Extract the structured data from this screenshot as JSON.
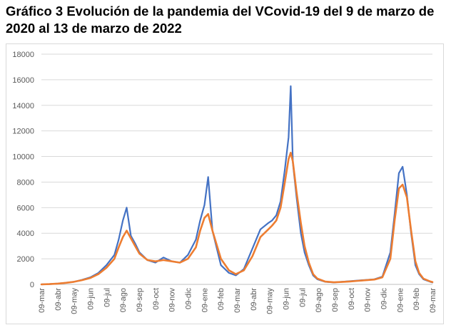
{
  "title": "Gráfico 3 Evolución de la pandemia del VCovid-19 del 9 de marzo de 2020 al 13 de marzo de 2022",
  "chart_data": {
    "type": "line",
    "title": "Gráfico 3 Evolución de la pandemia del VCovid-19 del 9 de marzo de 2020 al 13 de marzo de 2022",
    "xlabel": "",
    "ylabel": "",
    "ylim": [
      0,
      18000
    ],
    "yticks": [
      0,
      2000,
      4000,
      6000,
      8000,
      10000,
      12000,
      14000,
      16000,
      18000
    ],
    "x_tick_labels": [
      "09-mar",
      "09-abr",
      "09-may",
      "09-jun",
      "09-jul",
      "09-ago",
      "09-sep",
      "09-oct",
      "09-nov",
      "09-dic",
      "09-ene",
      "09-feb",
      "09-mar",
      "09-abr",
      "09-may",
      "09-jun",
      "09-jul",
      "09-ago",
      "09-sep",
      "09-oct",
      "09-nov",
      "09-dic",
      "09-ene",
      "09-feb",
      "09-mar"
    ],
    "grid": true,
    "legend": "none",
    "colors": {
      "daily": "#4472c4",
      "average": "#ed7d31"
    },
    "series": [
      {
        "style": "daily",
        "x": [
          "2020-03-09",
          "2020-03-24",
          "2020-04-09",
          "2020-04-24",
          "2020-05-09",
          "2020-05-24",
          "2020-06-09",
          "2020-06-24",
          "2020-07-09",
          "2020-07-24",
          "2020-08-01",
          "2020-08-09",
          "2020-08-16",
          "2020-08-24",
          "2020-09-01",
          "2020-09-09",
          "2020-09-24",
          "2020-10-09",
          "2020-10-24",
          "2020-11-09",
          "2020-11-24",
          "2020-12-09",
          "2020-12-24",
          "2021-01-01",
          "2021-01-09",
          "2021-01-16",
          "2021-01-24",
          "2021-02-09",
          "2021-02-24",
          "2021-03-09",
          "2021-03-24",
          "2021-04-09",
          "2021-04-24",
          "2021-05-09",
          "2021-05-16",
          "2021-05-24",
          "2021-06-01",
          "2021-06-09",
          "2021-06-16",
          "2021-06-20",
          "2021-06-24",
          "2021-07-01",
          "2021-07-09",
          "2021-07-16",
          "2021-07-24",
          "2021-08-01",
          "2021-08-09",
          "2021-08-24",
          "2021-09-09",
          "2021-09-24",
          "2021-10-09",
          "2021-10-24",
          "2021-11-09",
          "2021-11-24",
          "2021-12-09",
          "2021-12-24",
          "2022-01-01",
          "2022-01-09",
          "2022-01-16",
          "2022-01-24",
          "2022-02-01",
          "2022-02-09",
          "2022-02-16",
          "2022-02-24",
          "2022-03-09",
          "2022-03-13"
        ],
        "values": [
          0,
          20,
          60,
          120,
          200,
          350,
          550,
          900,
          1500,
          2300,
          3500,
          5000,
          6000,
          3800,
          3200,
          2500,
          1900,
          1700,
          2100,
          1800,
          1700,
          2300,
          3500,
          5000,
          6200,
          8400,
          4200,
          1500,
          900,
          700,
          1200,
          2800,
          4300,
          4800,
          5000,
          5400,
          6500,
          9000,
          11500,
          15500,
          9500,
          6800,
          4000,
          2500,
          1500,
          700,
          400,
          200,
          150,
          200,
          250,
          300,
          350,
          400,
          600,
          2500,
          5500,
          8700,
          9200,
          7000,
          4000,
          1500,
          800,
          400,
          200,
          150
        ]
      },
      {
        "style": "average",
        "x": [
          "2020-03-09",
          "2020-03-24",
          "2020-04-09",
          "2020-04-24",
          "2020-05-09",
          "2020-05-24",
          "2020-06-09",
          "2020-06-24",
          "2020-07-09",
          "2020-07-24",
          "2020-08-01",
          "2020-08-09",
          "2020-08-16",
          "2020-08-24",
          "2020-09-01",
          "2020-09-09",
          "2020-09-24",
          "2020-10-09",
          "2020-10-24",
          "2020-11-09",
          "2020-11-24",
          "2020-12-09",
          "2020-12-24",
          "2021-01-01",
          "2021-01-09",
          "2021-01-16",
          "2021-01-24",
          "2021-02-09",
          "2021-02-24",
          "2021-03-09",
          "2021-03-24",
          "2021-04-09",
          "2021-04-24",
          "2021-05-09",
          "2021-05-16",
          "2021-05-24",
          "2021-06-01",
          "2021-06-09",
          "2021-06-16",
          "2021-06-20",
          "2021-06-24",
          "2021-07-01",
          "2021-07-09",
          "2021-07-16",
          "2021-07-24",
          "2021-08-01",
          "2021-08-09",
          "2021-08-24",
          "2021-09-09",
          "2021-09-24",
          "2021-10-09",
          "2021-10-24",
          "2021-11-09",
          "2021-11-24",
          "2021-12-09",
          "2021-12-24",
          "2022-01-01",
          "2022-01-09",
          "2022-01-16",
          "2022-01-24",
          "2022-02-01",
          "2022-02-09",
          "2022-02-16",
          "2022-02-24",
          "2022-03-09",
          "2022-03-13"
        ],
        "values": [
          0,
          20,
          60,
          120,
          200,
          330,
          500,
          800,
          1300,
          2000,
          2900,
          3700,
          4200,
          3600,
          3000,
          2400,
          1900,
          1800,
          1900,
          1800,
          1700,
          2000,
          2900,
          4200,
          5200,
          5500,
          4200,
          2000,
          1100,
          800,
          1100,
          2200,
          3700,
          4300,
          4600,
          5000,
          6000,
          8000,
          9800,
          10300,
          9600,
          7200,
          4800,
          3000,
          1700,
          800,
          450,
          220,
          160,
          190,
          230,
          280,
          330,
          380,
          550,
          2000,
          5000,
          7500,
          7800,
          6800,
          4200,
          1800,
          900,
          450,
          230,
          180
        ]
      }
    ]
  }
}
